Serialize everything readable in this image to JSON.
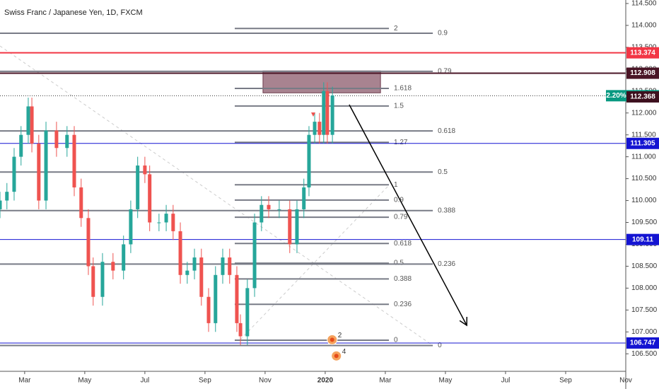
{
  "chart_data": {
    "type": "candlestick",
    "title": "Swiss Franc / Japanese Yen, 1D, FXCM",
    "x": [
      -0.82,
      -0.59,
      -0.35,
      -0.12,
      0.12,
      0.24,
      0.47,
      0.71,
      1.06,
      1.41,
      1.65,
      1.88,
      2.12,
      2.28,
      2.59,
      2.94,
      3.29,
      3.53,
      3.76,
      4.0,
      4.16,
      4.47,
      4.71,
      4.94,
      5.18,
      5.41,
      5.65,
      5.88,
      6.12,
      6.35,
      6.59,
      6.82,
      7.06,
      7.18,
      7.41,
      7.65,
      7.88,
      8.12,
      8.47,
      8.82,
      9.06,
      9.29,
      9.46,
      9.65,
      9.81,
      9.95,
      10.07,
      10.24
    ],
    "open": [
      109.8,
      110.0,
      110.2,
      111.0,
      111.5,
      112.15,
      111.3,
      110.0,
      111.6,
      111.2,
      111.5,
      110.3,
      109.6,
      108.5,
      107.8,
      108.6,
      108.4,
      109.0,
      109.8,
      110.8,
      110.6,
      109.5,
      109.5,
      109.7,
      109.3,
      108.3,
      108.4,
      108.7,
      107.8,
      107.2,
      108.3,
      108.7,
      108.3,
      107.2,
      106.9,
      108.0,
      109.5,
      109.9,
      109.8,
      109.8,
      109.0,
      109.8,
      110.3,
      111.5,
      111.8,
      111.5,
      112.5,
      111.5
    ],
    "high": [
      110.2,
      110.4,
      111.2,
      111.7,
      112.35,
      112.35,
      111.5,
      111.8,
      111.8,
      111.7,
      111.7,
      110.5,
      109.8,
      108.7,
      108.8,
      108.8,
      109.2,
      110.0,
      111.0,
      111.0,
      110.8,
      109.7,
      109.9,
      109.9,
      109.5,
      108.6,
      108.9,
      108.9,
      108.0,
      108.5,
      108.9,
      108.9,
      108.5,
      107.4,
      108.2,
      109.7,
      110.1,
      110.1,
      110.0,
      110.0,
      110.0,
      110.5,
      111.7,
      112.0,
      112.0,
      112.7,
      112.7,
      112.6
    ],
    "low": [
      109.6,
      109.8,
      110.0,
      110.8,
      111.3,
      111.1,
      109.8,
      109.8,
      111.0,
      111.0,
      110.1,
      109.4,
      108.3,
      107.6,
      107.6,
      108.2,
      108.2,
      108.8,
      109.6,
      110.4,
      109.3,
      109.3,
      109.3,
      109.1,
      108.1,
      108.1,
      108.2,
      107.6,
      107.0,
      107.0,
      108.1,
      108.1,
      107.0,
      106.7,
      106.7,
      107.8,
      109.3,
      109.6,
      109.6,
      108.8,
      108.8,
      109.6,
      110.1,
      111.3,
      111.3,
      111.3,
      111.3,
      111.3
    ],
    "close": [
      110.0,
      110.2,
      111.0,
      111.5,
      112.15,
      111.3,
      110.0,
      111.6,
      111.2,
      111.5,
      110.3,
      109.6,
      108.5,
      107.8,
      108.6,
      108.4,
      109.0,
      109.8,
      110.8,
      110.6,
      109.5,
      109.5,
      109.7,
      109.3,
      108.3,
      108.4,
      108.7,
      107.8,
      107.2,
      108.3,
      108.7,
      108.3,
      107.2,
      106.9,
      108.0,
      109.5,
      109.9,
      109.8,
      109.8,
      109.0,
      109.8,
      110.3,
      111.5,
      111.8,
      111.5,
      112.5,
      111.5,
      112.4
    ],
    "up_color": "#26a69a",
    "down_color": "#ef5350",
    "xlim": [
      -0.82,
      20
    ],
    "ylim": [
      106.1,
      114.58
    ],
    "xticks": [
      {
        "value": 0,
        "label": "Mar"
      },
      {
        "value": 2,
        "label": "May"
      },
      {
        "value": 4,
        "label": "Jul"
      },
      {
        "value": 6,
        "label": "Sep"
      },
      {
        "value": 8,
        "label": "Nov"
      },
      {
        "value": 10,
        "label": "2020"
      },
      {
        "value": 12,
        "label": "Mar"
      },
      {
        "value": 14,
        "label": "May"
      },
      {
        "value": 16,
        "label": "Jul"
      },
      {
        "value": 18,
        "label": "Sep"
      },
      {
        "value": 20,
        "label": "Nov"
      }
    ],
    "yticks": [
      {
        "value": 114.5,
        "label": "114.500"
      },
      {
        "value": 114.0,
        "label": "114.000"
      },
      {
        "value": 113.5,
        "label": "113.500"
      },
      {
        "value": 113.0,
        "label": "113.000"
      },
      {
        "value": 112.5,
        "label": "112.500"
      },
      {
        "value": 112.0,
        "label": "112.000"
      },
      {
        "value": 111.5,
        "label": "111.500"
      },
      {
        "value": 111.0,
        "label": "111.000"
      },
      {
        "value": 110.5,
        "label": "110.500"
      },
      {
        "value": 110.0,
        "label": "110.000"
      },
      {
        "value": 109.5,
        "label": "109.500"
      },
      {
        "value": 109.0,
        "label": "109.000"
      },
      {
        "value": 108.5,
        "label": "108.500"
      },
      {
        "value": 108.0,
        "label": "108.000"
      },
      {
        "value": 107.5,
        "label": "107.500"
      },
      {
        "value": 107.0,
        "label": "107.000"
      },
      {
        "value": 106.5,
        "label": "106.500"
      }
    ],
    "grid": false,
    "price_labels": [
      {
        "value": 113.374,
        "color": "#f23645",
        "line": "solid"
      },
      {
        "value": 112.908,
        "color": "#4a1526",
        "line": "solid"
      },
      {
        "value": 112.394,
        "color": "#089981",
        "line": "dotted",
        "change": "2.20%"
      },
      {
        "value": 112.368,
        "color": "#3d0f1e",
        "line": "none"
      },
      {
        "value": 111.305,
        "color": "#1414d2",
        "line": "solid"
      },
      {
        "value": 109.11,
        "color": "#1414d2",
        "line": "solid"
      },
      {
        "value": 106.747,
        "color": "#1414d2",
        "line": "solid"
      }
    ],
    "fib_sets": [
      {
        "start": 6.99,
        "end": 12.12,
        "color": "#787b86",
        "levels": [
          {
            "label": "2",
            "value": 113.93
          },
          {
            "label": "1.618",
            "value": 112.56
          },
          {
            "label": "1.5",
            "value": 112.16
          },
          {
            "label": "1.27",
            "value": 111.33
          },
          {
            "label": "1",
            "value": 110.36
          },
          {
            "label": "0.9",
            "value": 110.01
          },
          {
            "label": "0.79",
            "value": 109.62
          },
          {
            "label": "0.618",
            "value": 109.02
          },
          {
            "label": "0.5",
            "value": 108.57
          },
          {
            "label": "0.388",
            "value": 108.21
          },
          {
            "label": "0.236",
            "value": 107.63
          },
          {
            "label": "0",
            "value": 106.81
          }
        ]
      },
      {
        "start": -0.82,
        "end": 13.58,
        "color": "#787b86",
        "levels": [
          {
            "label": "0.9",
            "value": 113.82
          },
          {
            "label": "0.79",
            "value": 112.95
          },
          {
            "label": "0.618",
            "value": 111.59
          },
          {
            "label": "0.5",
            "value": 110.65
          },
          {
            "label": "0.388",
            "value": 109.77
          },
          {
            "label": "0.236",
            "value": 108.55
          },
          {
            "label": "0",
            "value": 106.69
          }
        ]
      }
    ],
    "zone": {
      "start": 7.93,
      "end": 11.84,
      "top": 112.96,
      "bottom": 112.46,
      "color": "#8b5a6b"
    },
    "arrow": {
      "x": [
        10.8,
        14.71
      ],
      "y": [
        112.19,
        107.15
      ]
    },
    "events": [
      {
        "label": "2",
        "x": 10.42,
        "y": 106.87
      },
      {
        "label": "4",
        "x": 10.56,
        "y": 106.5
      }
    ]
  }
}
